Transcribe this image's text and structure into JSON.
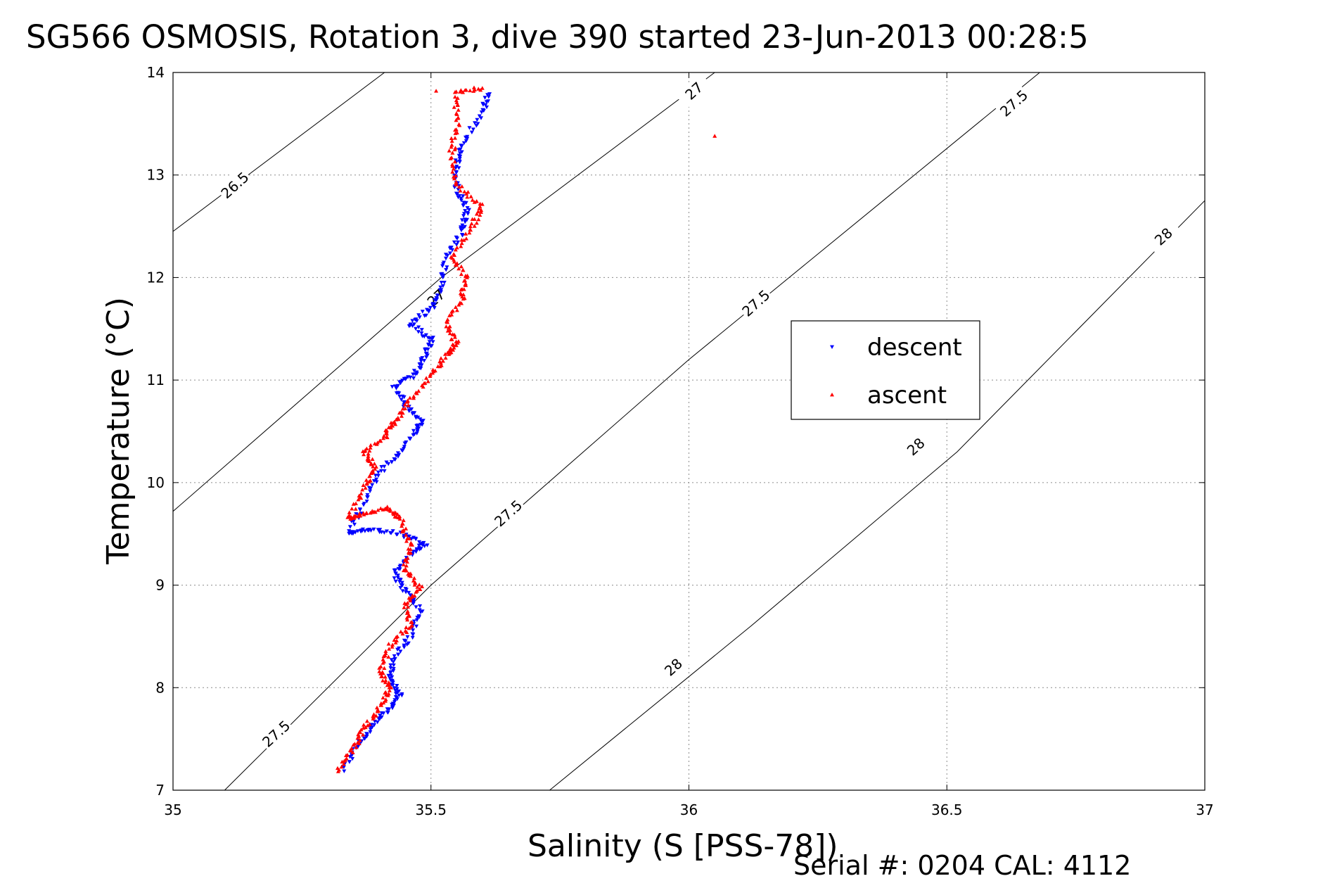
{
  "chart_data": {
    "type": "scatter",
    "title": "SG566 OSMOSIS, Rotation 3, dive 390 started 23-Jun-2013 00:28:5",
    "xlabel": "Salinity (S [PSS-78])",
    "ylabel": "Temperature (°C)",
    "xlim": [
      35,
      37
    ],
    "ylim": [
      7,
      14
    ],
    "xticks": [
      35,
      35.5,
      36,
      36.5,
      37
    ],
    "xtick_labels": [
      "35",
      "35.5",
      "36",
      "36.5",
      "37"
    ],
    "yticks": [
      7,
      8,
      9,
      10,
      11,
      12,
      13,
      14
    ],
    "ytick_labels": [
      "7",
      "8",
      "9",
      "10",
      "11",
      "12",
      "13",
      "14"
    ],
    "grid": true,
    "legend_position": "center-right",
    "footer": "Serial #: 0204  CAL: 4112",
    "contours": [
      {
        "label": "26.5",
        "points": [
          [
            35.0,
            12.45
          ],
          [
            35.41,
            14.0
          ]
        ],
        "label_at": [
          [
            35.12,
            12.9
          ]
        ]
      },
      {
        "label": "27",
        "points": [
          [
            35.0,
            9.72
          ],
          [
            35.52,
            12.0
          ],
          [
            36.05,
            14.0
          ]
        ],
        "label_at": [
          [
            35.51,
            11.8
          ],
          [
            36.01,
            13.82
          ]
        ]
      },
      {
        "label": "27.5",
        "points": [
          [
            35.1,
            7.0
          ],
          [
            35.5,
            9.0
          ],
          [
            36.0,
            11.2
          ],
          [
            36.68,
            14.0
          ]
        ],
        "label_at": [
          [
            35.2,
            7.55
          ],
          [
            35.65,
            9.7
          ],
          [
            36.13,
            11.75
          ],
          [
            36.63,
            13.7
          ]
        ]
      },
      {
        "label": "28",
        "points": [
          [
            35.73,
            7.0
          ],
          [
            36.12,
            8.6
          ],
          [
            36.52,
            10.3
          ],
          [
            37.0,
            12.75
          ]
        ],
        "label_at": [
          [
            35.97,
            8.2
          ],
          [
            36.44,
            10.35
          ],
          [
            36.92,
            12.4
          ]
        ]
      }
    ],
    "series": [
      {
        "name": "descent",
        "color": "#0000ff",
        "marker": "triangle-down",
        "path": [
          [
            35.33,
            7.2
          ],
          [
            35.36,
            7.45
          ],
          [
            35.39,
            7.65
          ],
          [
            35.42,
            7.8
          ],
          [
            35.44,
            7.95
          ],
          [
            35.42,
            8.1
          ],
          [
            35.43,
            8.3
          ],
          [
            35.46,
            8.5
          ],
          [
            35.48,
            8.75
          ],
          [
            35.45,
            8.95
          ],
          [
            35.43,
            9.1
          ],
          [
            35.46,
            9.3
          ],
          [
            35.49,
            9.4
          ],
          [
            35.44,
            9.5
          ],
          [
            35.38,
            9.55
          ],
          [
            35.34,
            9.5
          ],
          [
            35.37,
            9.8
          ],
          [
            35.4,
            10.1
          ],
          [
            35.44,
            10.3
          ],
          [
            35.47,
            10.5
          ],
          [
            35.48,
            10.6
          ],
          [
            35.45,
            10.75
          ],
          [
            35.43,
            10.95
          ],
          [
            35.47,
            11.05
          ],
          [
            35.49,
            11.25
          ],
          [
            35.5,
            11.4
          ],
          [
            35.46,
            11.55
          ],
          [
            35.5,
            11.7
          ],
          [
            35.52,
            11.9
          ],
          [
            35.53,
            12.2
          ],
          [
            35.56,
            12.45
          ],
          [
            35.57,
            12.65
          ],
          [
            35.55,
            12.85
          ],
          [
            35.55,
            13.1
          ],
          [
            35.56,
            13.3
          ],
          [
            35.6,
            13.6
          ],
          [
            35.61,
            13.8
          ]
        ]
      },
      {
        "name": "ascent",
        "color": "#ff0000",
        "marker": "triangle-up",
        "path": [
          [
            35.32,
            7.2
          ],
          [
            35.35,
            7.4
          ],
          [
            35.37,
            7.6
          ],
          [
            35.4,
            7.8
          ],
          [
            35.42,
            8.0
          ],
          [
            35.4,
            8.15
          ],
          [
            35.42,
            8.4
          ],
          [
            35.46,
            8.6
          ],
          [
            35.45,
            8.8
          ],
          [
            35.48,
            8.98
          ],
          [
            35.45,
            9.15
          ],
          [
            35.46,
            9.4
          ],
          [
            35.44,
            9.65
          ],
          [
            35.42,
            9.75
          ],
          [
            35.37,
            9.7
          ],
          [
            35.34,
            9.65
          ],
          [
            35.37,
            9.95
          ],
          [
            35.39,
            10.15
          ],
          [
            35.37,
            10.3
          ],
          [
            35.41,
            10.45
          ],
          [
            35.43,
            10.6
          ],
          [
            35.46,
            10.8
          ],
          [
            35.5,
            11.05
          ],
          [
            35.53,
            11.25
          ],
          [
            35.55,
            11.35
          ],
          [
            35.53,
            11.55
          ],
          [
            35.56,
            11.8
          ],
          [
            35.57,
            12.0
          ],
          [
            35.54,
            12.2
          ],
          [
            35.58,
            12.5
          ],
          [
            35.6,
            12.7
          ],
          [
            35.55,
            12.9
          ],
          [
            35.54,
            13.2
          ],
          [
            35.55,
            13.5
          ],
          [
            35.55,
            13.8
          ],
          [
            35.6,
            13.85
          ]
        ],
        "outliers": [
          [
            36.05,
            13.38
          ],
          [
            35.51,
            13.82
          ]
        ]
      }
    ]
  }
}
